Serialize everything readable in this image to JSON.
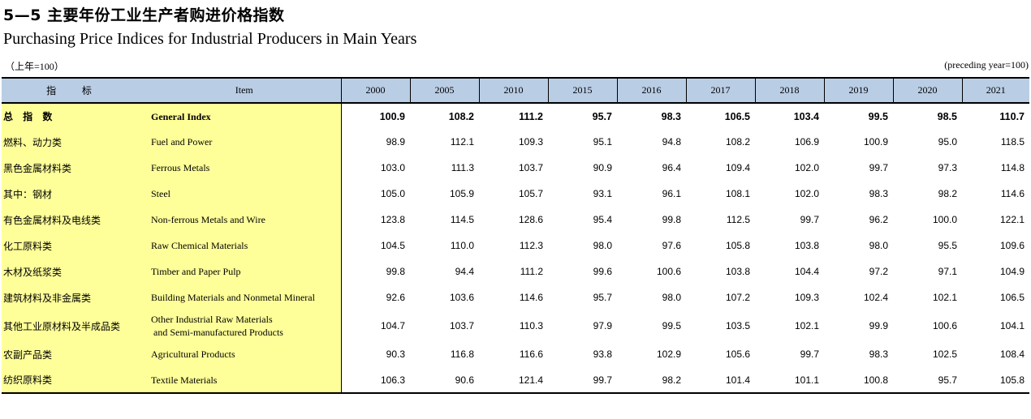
{
  "title_zh": "5—5  主要年份工业生产者购进价格指数",
  "title_en": "Purchasing Price Indices for Industrial Producers in Main Years",
  "unit_zh": "（上年=100）",
  "unit_en": "(preceding year=100)",
  "header": {
    "indicator_zh": "指 标",
    "item_en": "Item",
    "years": [
      "2000",
      "2005",
      "2010",
      "2015",
      "2016",
      "2017",
      "2018",
      "2019",
      "2020",
      "2021"
    ]
  },
  "rows": [
    {
      "zh": "总 指 数",
      "en": "General Index",
      "bold": true,
      "values": [
        "100.9",
        "108.2",
        "111.2",
        "95.7",
        "98.3",
        "106.5",
        "103.4",
        "99.5",
        "98.5",
        "110.7"
      ]
    },
    {
      "zh": "燃料、动力类",
      "en": "Fuel and Power",
      "values": [
        "98.9",
        "112.1",
        "109.3",
        "95.1",
        "94.8",
        "108.2",
        "106.9",
        "100.9",
        "95.0",
        "118.5"
      ]
    },
    {
      "zh": "黑色金属材料类",
      "en": "Ferrous Metals",
      "values": [
        "103.0",
        "111.3",
        "103.7",
        "90.9",
        "96.4",
        "109.4",
        "102.0",
        "99.7",
        "97.3",
        "114.8"
      ]
    },
    {
      "zh": "其中：钢材",
      "en": "Steel",
      "values": [
        "105.0",
        "105.9",
        "105.7",
        "93.1",
        "96.1",
        "108.1",
        "102.0",
        "98.3",
        "98.2",
        "114.6"
      ]
    },
    {
      "zh": "有色金属材料及电线类",
      "en": "Non-ferrous Metals and Wire",
      "values": [
        "123.8",
        "114.5",
        "128.6",
        "95.4",
        "99.8",
        "112.5",
        "99.7",
        "96.2",
        "100.0",
        "122.1"
      ]
    },
    {
      "zh": "化工原料类",
      "en": "Raw Chemical Materials",
      "values": [
        "104.5",
        "110.0",
        "112.3",
        "98.0",
        "97.6",
        "105.8",
        "103.8",
        "98.0",
        "95.5",
        "109.6"
      ]
    },
    {
      "zh": "木材及纸浆类",
      "en": "Timber and Paper Pulp",
      "values": [
        "99.8",
        "94.4",
        "111.2",
        "99.6",
        "100.6",
        "103.8",
        "104.4",
        "97.2",
        "97.1",
        "104.9"
      ]
    },
    {
      "zh": "建筑材料及非金属类",
      "en": "Building Materials and Nonmetal Mineral",
      "values": [
        "92.6",
        "103.6",
        "114.6",
        "95.7",
        "98.0",
        "107.2",
        "109.3",
        "102.4",
        "102.1",
        "106.5"
      ]
    },
    {
      "zh": "其他工业原材料及半成品类",
      "en": "Other Industrial Raw Materials",
      "en2": " and Semi-manufactured Products",
      "tall": true,
      "values": [
        "104.7",
        "103.7",
        "110.3",
        "97.9",
        "99.5",
        "103.5",
        "102.1",
        "99.9",
        "100.6",
        "104.1"
      ]
    },
    {
      "zh": "农副产品类",
      "en": "Agricultural Products",
      "values": [
        "90.3",
        "116.8",
        "116.6",
        "93.8",
        "102.9",
        "105.6",
        "99.7",
        "98.3",
        "102.5",
        "108.4"
      ]
    },
    {
      "zh": "纺织原料类",
      "en": "Textile Materials",
      "values": [
        "106.3",
        "90.6",
        "121.4",
        "99.7",
        "98.2",
        "101.4",
        "101.1",
        "100.8",
        "95.7",
        "105.8"
      ]
    }
  ]
}
